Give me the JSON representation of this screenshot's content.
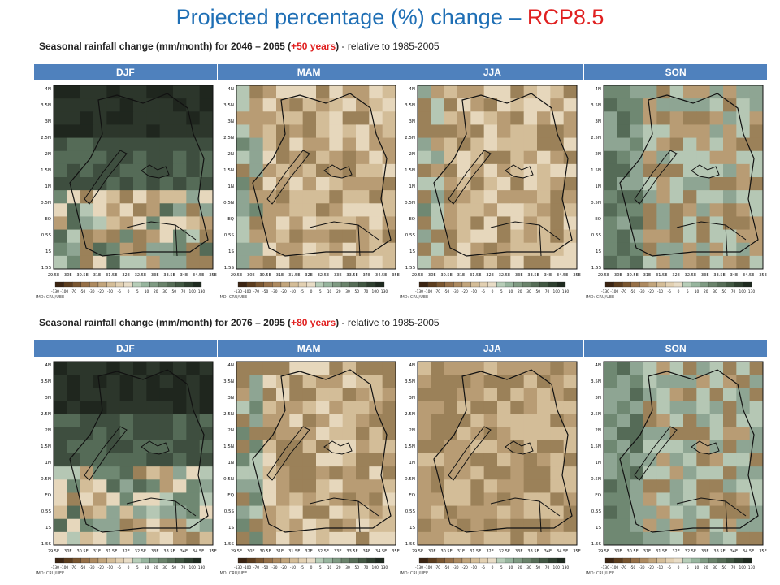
{
  "title": {
    "main": "Projected percentage (%) change – ",
    "highlight": "RCP8.5"
  },
  "rows": [
    {
      "subtitle": {
        "pre": "Seasonal rainfall change (mm/month) for 2046 – 2065  (",
        "highlight": "+50 years",
        "post": ") ",
        "rel": "- relative to 1985-2005"
      },
      "seasons": [
        "DJF",
        "MAM",
        "JJA",
        "SON"
      ]
    },
    {
      "subtitle": {
        "pre": "Seasonal rainfall change (mm/month) for 2076 – 2095  (",
        "highlight": "+80 years",
        "post": ") ",
        "rel": "- relative to 1985-2005"
      },
      "seasons": [
        "DJF",
        "MAM",
        "JJA",
        "SON"
      ]
    }
  ],
  "map": {
    "lat_labels": [
      "4N",
      "3.5N",
      "3N",
      "2.5N",
      "2N",
      "1.5N",
      "1N",
      "0.5N",
      "EQ",
      "0.5S",
      "1S",
      "1.5S"
    ],
    "lon_labels": [
      "29.5E",
      "30E",
      "30.5E",
      "31E",
      "31.5E",
      "32E",
      "32.5E",
      "33E",
      "33.5E",
      "34E",
      "34.5E",
      "35E"
    ],
    "colorbar_labels": [
      "-130",
      "-100",
      "-70",
      "-50",
      "-30",
      "-20",
      "-10",
      "-5",
      "0",
      "5",
      "10",
      "20",
      "30",
      "50",
      "70",
      "100",
      "130"
    ],
    "colorbar_colors": [
      "#3b2412",
      "#5c3d1e",
      "#7a5630",
      "#967048",
      "#ad8a60",
      "#c2a57c",
      "#d4bd98",
      "#e2d0b2",
      "#e8dcc6",
      "#b7cdb8",
      "#97b59e",
      "#7f9b83",
      "#6a836b",
      "#566d57",
      "#425843",
      "#2e3f2f",
      "#1e2a1f"
    ],
    "credit": "IMD: CRU/UEE"
  }
}
